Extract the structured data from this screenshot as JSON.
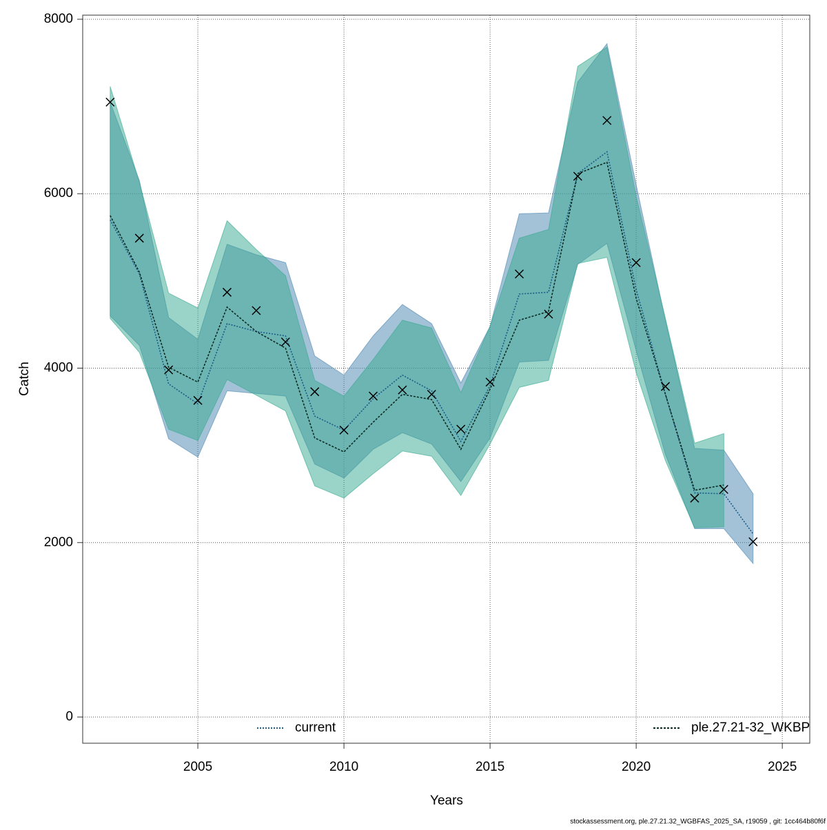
{
  "chart_data": {
    "type": "line",
    "xlabel": "Years",
    "ylabel": "Catch",
    "x": [
      2002,
      2003,
      2004,
      2005,
      2006,
      2007,
      2008,
      2009,
      2010,
      2011,
      2012,
      2013,
      2014,
      2015,
      2016,
      2017,
      2018,
      2019,
      2020,
      2021,
      2022,
      2023,
      2024
    ],
    "series": [
      {
        "name": "current",
        "color": "#4a86b0",
        "line_color": "#1c5a86",
        "dash": "2,2",
        "values": [
          5700,
          5080,
          3820,
          3590,
          4510,
          4420,
          4370,
          3450,
          3290,
          3650,
          3920,
          3740,
          3160,
          3800,
          4850,
          4870,
          6230,
          6480,
          4900,
          3700,
          2570,
          2560,
          2100
        ],
        "high": [
          7050,
          6150,
          4580,
          4330,
          5420,
          5300,
          5210,
          4140,
          3920,
          4370,
          4730,
          4510,
          3830,
          4480,
          5770,
          5780,
          7280,
          7720,
          6100,
          4550,
          3080,
          3060,
          2560
        ],
        "low": [
          4600,
          4260,
          3190,
          2980,
          3740,
          3710,
          3680,
          2900,
          2740,
          3070,
          3260,
          3130,
          2700,
          3200,
          4070,
          4090,
          5190,
          5430,
          4200,
          3010,
          2160,
          2160,
          1760
        ]
      },
      {
        "name": "ple.27.21-32_WKBP",
        "color": "#36a88f",
        "line_color": "#0b2a22",
        "dash": "3,2",
        "values": [
          5750,
          5100,
          4010,
          3840,
          4700,
          4420,
          4230,
          3200,
          3040,
          3380,
          3700,
          3640,
          3070,
          3760,
          4550,
          4650,
          6230,
          6360,
          4800,
          3700,
          2600,
          2660,
          null
        ],
        "high": [
          7230,
          6130,
          4860,
          4690,
          5690,
          5360,
          5060,
          3860,
          3680,
          4100,
          4550,
          4460,
          3720,
          4480,
          5490,
          5590,
          7460,
          7680,
          5970,
          4570,
          3140,
          3250,
          null
        ],
        "low": [
          4570,
          4180,
          3300,
          3170,
          3870,
          3690,
          3510,
          2650,
          2510,
          2790,
          3050,
          2990,
          2540,
          3130,
          3780,
          3860,
          5200,
          5270,
          3950,
          2940,
          2170,
          2180,
          null
        ]
      }
    ],
    "observations": [
      7050,
      5490,
      3980,
      3630,
      4870,
      4660,
      4300,
      3730,
      3290,
      3680,
      3750,
      3700,
      3300,
      3840,
      5080,
      4620,
      6200,
      6840,
      5210,
      3790,
      2510,
      2610,
      2010
    ],
    "xlim": [
      2001.06,
      2025.94
    ],
    "ylim": [
      -300,
      8047
    ],
    "xticks": [
      2005,
      2010,
      2015,
      2020,
      2025
    ],
    "yticks": [
      0,
      2000,
      4000,
      6000,
      8000
    ],
    "grid": true,
    "legend": "bottom",
    "footer": "stockassessment.org, ple.27.21.32_WGBFAS_2025_SA, r19059 , git: 1cc464b80f6f"
  }
}
